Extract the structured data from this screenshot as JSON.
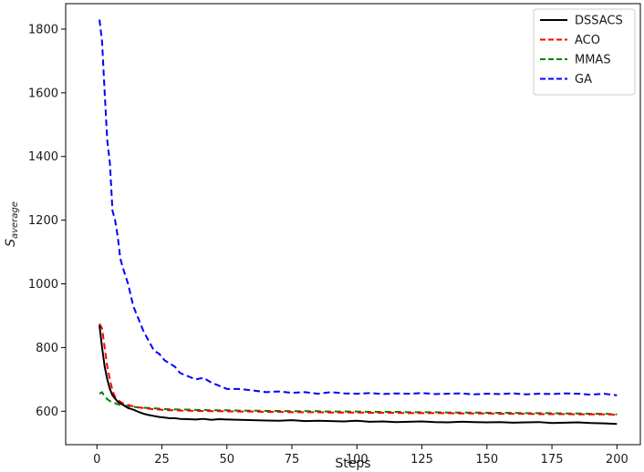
{
  "chart_data": {
    "type": "line",
    "title": "",
    "xlabel": "Steps",
    "ylabel_base": "S",
    "ylabel_sub": "average",
    "xlim": [
      -12,
      209
    ],
    "ylim": [
      495,
      1880
    ],
    "xticks": [
      0,
      25,
      50,
      75,
      100,
      125,
      150,
      175,
      200
    ],
    "yticks": [
      600,
      800,
      1000,
      1200,
      1400,
      1600,
      1800
    ],
    "grid": false,
    "legend_position": "top-right",
    "x": [
      1,
      2,
      3,
      4,
      5,
      6,
      7,
      8,
      9,
      10,
      12,
      14,
      16,
      18,
      20,
      22,
      24,
      26,
      28,
      30,
      32,
      35,
      38,
      41,
      44,
      47,
      50,
      55,
      60,
      65,
      70,
      75,
      80,
      85,
      90,
      95,
      100,
      105,
      110,
      115,
      120,
      125,
      130,
      135,
      140,
      145,
      150,
      155,
      160,
      165,
      170,
      175,
      180,
      185,
      190,
      195,
      200
    ],
    "series": [
      {
        "name": "DSSACS",
        "color": "#000000",
        "dash": "solid",
        "values": [
          870,
          800,
          740,
          700,
          670,
          650,
          640,
          630,
          625,
          620,
          610,
          605,
          598,
          592,
          588,
          585,
          582,
          580,
          578,
          578,
          576,
          575,
          574,
          576,
          573,
          575,
          574,
          573,
          572,
          571,
          570,
          572,
          569,
          570,
          569,
          568,
          570,
          567,
          568,
          566,
          567,
          568,
          566,
          565,
          567,
          566,
          565,
          566,
          564,
          565,
          566,
          563,
          564,
          565,
          563,
          562,
          560
        ]
      },
      {
        "name": "ACO",
        "color": "#ff0000",
        "dash": "dashed",
        "values": [
          875,
          860,
          800,
          740,
          700,
          665,
          645,
          635,
          630,
          625,
          620,
          615,
          612,
          610,
          608,
          606,
          605,
          604,
          603,
          603,
          602,
          602,
          601,
          601,
          600,
          600,
          600,
          599,
          599,
          598,
          598,
          597,
          597,
          597,
          596,
          596,
          596,
          595,
          595,
          595,
          594,
          594,
          594,
          594,
          593,
          593,
          593,
          592,
          592,
          592,
          591,
          591,
          591,
          590,
          590,
          590,
          589
        ]
      },
      {
        "name": "MMAS",
        "color": "#008000",
        "dash": "dashed",
        "values": [
          655,
          660,
          645,
          638,
          632,
          628,
          625,
          622,
          620,
          618,
          616,
          614,
          612,
          611,
          610,
          609,
          608,
          607,
          606,
          606,
          605,
          605,
          604,
          604,
          603,
          603,
          603,
          602,
          602,
          601,
          601,
          600,
          600,
          600,
          599,
          599,
          599,
          598,
          598,
          598,
          597,
          597,
          597,
          596,
          596,
          596,
          595,
          595,
          595,
          594,
          594,
          594,
          593,
          593,
          592,
          592,
          590
        ]
      },
      {
        "name": "GA",
        "color": "#0000ff",
        "dash": "dashed",
        "values": [
          1830,
          1760,
          1600,
          1450,
          1380,
          1230,
          1200,
          1150,
          1080,
          1050,
          1000,
          930,
          890,
          850,
          820,
          790,
          780,
          760,
          750,
          740,
          720,
          710,
          700,
          705,
          690,
          680,
          670,
          670,
          665,
          660,
          662,
          658,
          660,
          655,
          660,
          656,
          655,
          657,
          654,
          656,
          655,
          657,
          654,
          655,
          656,
          653,
          655,
          654,
          656,
          653,
          655,
          654,
          656,
          655,
          652,
          655,
          650
        ]
      }
    ]
  }
}
